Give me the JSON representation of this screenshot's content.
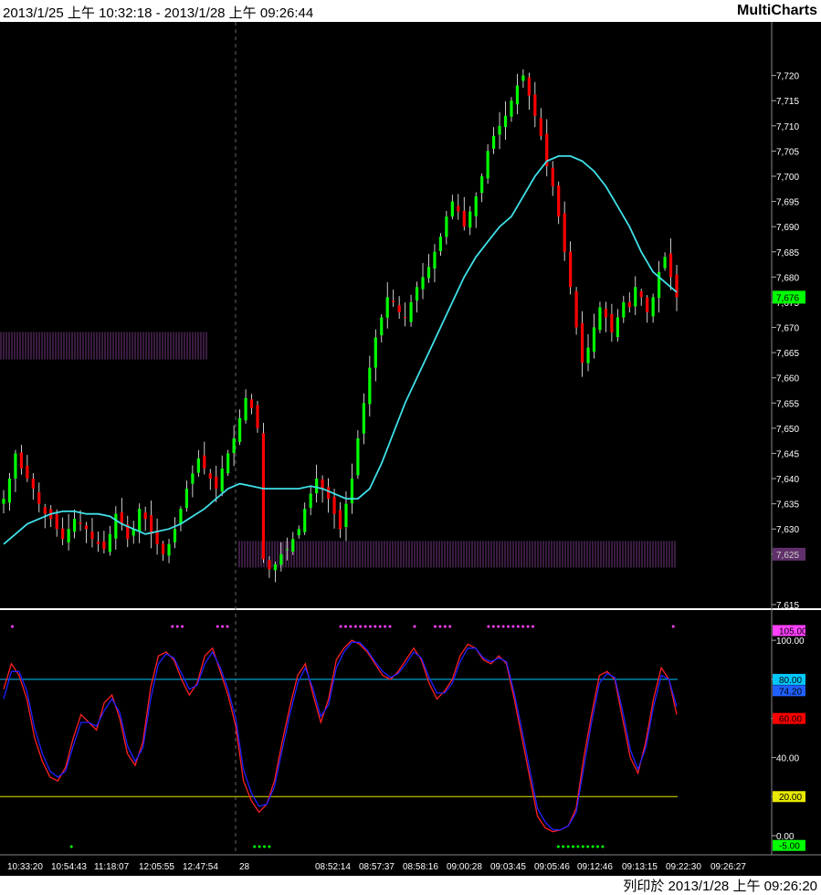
{
  "header": {
    "range_label": "2013/1/25 上午 10:32:18 - 2013/1/28 上午 09:26:44",
    "brand": "MultiCharts"
  },
  "footer": {
    "print_label": "列印於 2013/1/28 上午 09:26:20"
  },
  "colors": {
    "background": "#000000",
    "up_candle": "#00ff00",
    "down_candle": "#ff0000",
    "moving_average": "#40e0e8",
    "k_line": "#ff2020",
    "d_line": "#2020ff",
    "level_80": "#00c8ff",
    "level_20": "#e8e800",
    "signal_dots_top": "#ff40ff",
    "signal_dots_bottom": "#00ff00",
    "volume_band": "#60306a"
  },
  "chart_data": [
    {
      "type": "candlestick",
      "ylim": [
        7615,
        7727
      ],
      "y_ticks": [
        "7,720",
        "7,715",
        "7,710",
        "7,705",
        "7,700",
        "7,695",
        "7,690",
        "7,685",
        "7,680",
        "7,675",
        "7,670",
        "7,665",
        "7,660",
        "7,655",
        "7,650",
        "7,645",
        "7,640",
        "7,635",
        "7,630",
        "7,625",
        "7,615"
      ],
      "y_tick_values": [
        7720,
        7715,
        7710,
        7705,
        7700,
        7695,
        7690,
        7685,
        7680,
        7675,
        7670,
        7665,
        7660,
        7655,
        7650,
        7645,
        7640,
        7635,
        7630,
        7625,
        7615
      ],
      "last_price_label": "7,676",
      "last_price": 7676,
      "level_label": "7,625",
      "level_value": 7625,
      "close_path": [
        7636,
        7640,
        7645,
        7642,
        7640,
        7638,
        7635,
        7633,
        7632,
        7630,
        7628,
        7630,
        7632,
        7631,
        7630,
        7628,
        7627,
        7626,
        7629,
        7633,
        7631,
        7628,
        7630,
        7634,
        7632,
        7629,
        7627,
        7625,
        7627,
        7630,
        7634,
        7638,
        7641,
        7644,
        7642,
        7640,
        7638,
        7642,
        7645,
        7648,
        7652,
        7656,
        7654,
        7650,
        7624,
        7622,
        7623,
        7625,
        7626,
        7628,
        7630,
        7634,
        7637,
        7640,
        7638,
        7636,
        7633,
        7630,
        7635,
        7640,
        7648,
        7655,
        7662,
        7668,
        7672,
        7676,
        7675,
        7673,
        7672,
        7675,
        7678,
        7680,
        7682,
        7685,
        7688,
        7692,
        7695,
        7693,
        7690,
        7693,
        7696,
        7700,
        7705,
        7708,
        7710,
        7712,
        7715,
        7718,
        7720,
        7716,
        7712,
        7708,
        7702,
        7698,
        7692,
        7685,
        7678,
        7670,
        7663,
        7666,
        7670,
        7674,
        7672,
        7669,
        7672,
        7675,
        7674,
        7678,
        7676,
        7673,
        7676,
        7681,
        7684,
        7680,
        7676
      ],
      "ma_path": [
        7627,
        7629,
        7631,
        7632,
        7633,
        7633.5,
        7633.5,
        7633,
        7633,
        7632.5,
        7631,
        7630,
        7629,
        7629.5,
        7630,
        7631,
        7632.5,
        7634,
        7636,
        7638,
        7639,
        7638.5,
        7638,
        7638,
        7638,
        7638,
        7638.5,
        7638,
        7637,
        7636,
        7636,
        7638,
        7643,
        7649,
        7655,
        7660,
        7665,
        7670,
        7675,
        7680,
        7684,
        7687,
        7690,
        7692,
        7696,
        7700,
        7703,
        7704,
        7704,
        7703,
        7701,
        7698,
        7694,
        7690,
        7685,
        7681,
        7679,
        7677
      ],
      "volume_band_left_value": 7664,
      "volume_band_right_value": 7622,
      "x_tick_labels": [
        "10:33:20",
        "10:54:43",
        "11:18:07",
        "12:05:55",
        "12:47:54",
        "28",
        "08:52:14",
        "08:57:37",
        "08:58:16",
        "09:00:28",
        "09:03:45",
        "09:05:46",
        "09:12:46",
        "09:13:15",
        "09:22:30",
        "09:26:27"
      ]
    },
    {
      "type": "line",
      "ylim": [
        -7,
        108
      ],
      "y_ticks": [
        "100.00",
        "80.00",
        "60.00",
        "40.00",
        "20.00",
        "0.00"
      ],
      "y_tick_values": [
        100,
        80,
        60,
        40,
        20,
        0
      ],
      "level_labels": [
        "105.00",
        "80.00",
        "74.20",
        "60.00",
        "20.00",
        "-5.00"
      ],
      "level_values": [
        105,
        80,
        74.2,
        60,
        20,
        -5
      ],
      "series": [
        {
          "values": [
            75,
            88,
            82,
            70,
            50,
            38,
            30,
            28,
            35,
            50,
            62,
            58,
            54,
            68,
            72,
            60,
            42,
            36,
            48,
            76,
            92,
            94,
            90,
            80,
            72,
            78,
            92,
            96,
            84,
            72,
            56,
            28,
            18,
            12,
            16,
            28,
            48,
            66,
            82,
            88,
            72,
            58,
            70,
            90,
            96,
            100,
            98,
            94,
            88,
            82,
            80,
            84,
            90,
            96,
            90,
            78,
            70,
            74,
            80,
            92,
            98,
            96,
            90,
            88,
            92,
            88,
            70,
            50,
            30,
            10,
            4,
            2,
            3,
            5,
            14,
            40,
            62,
            82,
            84,
            80,
            60,
            40,
            32,
            48,
            70,
            86,
            80,
            62
          ]
        },
        {
          "values": [
            70,
            84,
            84,
            74,
            55,
            42,
            33,
            30,
            33,
            46,
            58,
            58,
            56,
            64,
            70,
            63,
            46,
            38,
            45,
            70,
            88,
            93,
            91,
            83,
            75,
            77,
            88,
            94,
            86,
            75,
            60,
            34,
            22,
            15,
            16,
            25,
            44,
            62,
            78,
            86,
            75,
            61,
            67,
            86,
            94,
            99,
            99,
            95,
            89,
            84,
            81,
            83,
            88,
            94,
            91,
            81,
            73,
            73,
            78,
            89,
            96,
            96,
            91,
            89,
            91,
            89,
            73,
            54,
            34,
            14,
            7,
            3,
            3,
            5,
            12,
            35,
            58,
            78,
            83,
            81,
            64,
            44,
            34,
            45,
            66,
            82,
            80,
            66
          ]
        }
      ],
      "top_dot_runs": [
        [
          0.015
        ],
        [
          0.21,
          0.225
        ],
        [
          0.265,
          0.28
        ],
        [
          0.415,
          0.48
        ],
        [
          0.505
        ],
        [
          0.53,
          0.55
        ],
        [
          0.595,
          0.65
        ],
        [
          0.82
        ]
      ],
      "bottom_dot_runs": [
        [
          0.087
        ],
        [
          0.31,
          0.33
        ],
        [
          0.68,
          0.735
        ]
      ]
    }
  ]
}
